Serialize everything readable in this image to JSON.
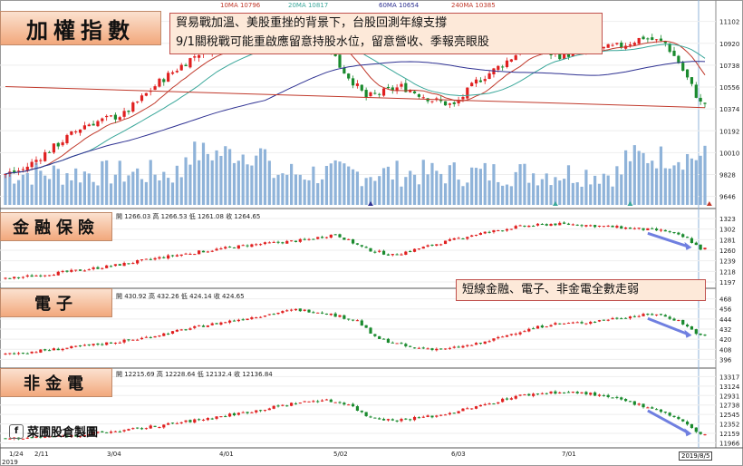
{
  "header": {
    "ma_legend": [
      {
        "label": "10MA 10796",
        "color": "#c0392b"
      },
      {
        "label": "20MA 10817",
        "color": "#3aa79a"
      },
      {
        "label": "60MA 10654",
        "color": "#2e3192"
      },
      {
        "label": "240MA 10385",
        "color": "#c0392b"
      }
    ]
  },
  "annotation_main": {
    "line1": "貿易戰加溫、美股重挫的背景下，台股回測年線支撐",
    "line2": "9/1關稅戰可能重啟應留意持股水位，留意營收、季報亮眼股"
  },
  "annotation_sub": "短線金融、電子、非金電全數走弱",
  "watermark": "菜圃股倉製圖",
  "watermark_icon": "f",
  "date_marker": "2019/8/5",
  "year_label": "2019",
  "colors": {
    "up": "#e02020",
    "down": "#1a8a2e",
    "volume": "#8fb3d9",
    "arrow": "#6f7fe0"
  },
  "chart_data": [
    {
      "type": "candlestick",
      "title": "加權指數",
      "x": [
        "1/24",
        "2/11",
        "3/04",
        "4/01",
        "5/02",
        "6/03",
        "7/01",
        "8/05"
      ],
      "yticks": [
        9646,
        9828,
        10010,
        10192,
        10374,
        10556,
        10738,
        10920,
        11102
      ],
      "ylim": [
        9560,
        11190
      ],
      "ma": {
        "10MA": 10796,
        "20MA": 10817,
        "60MA": 10654,
        "240MA": 10385
      },
      "anchors": [
        [
          0,
          9830
        ],
        [
          4,
          9870
        ],
        [
          10,
          10030
        ],
        [
          18,
          10240
        ],
        [
          27,
          10330
        ],
        [
          35,
          10600
        ],
        [
          45,
          10870
        ],
        [
          57,
          10920
        ],
        [
          66,
          10930
        ],
        [
          69,
          11010
        ],
        [
          73,
          10950
        ],
        [
          76,
          10730
        ],
        [
          82,
          10470
        ],
        [
          90,
          10560
        ],
        [
          97,
          10450
        ],
        [
          102,
          10400
        ],
        [
          107,
          10600
        ],
        [
          112,
          10720
        ],
        [
          118,
          10880
        ],
        [
          126,
          10820
        ],
        [
          132,
          10850
        ],
        [
          140,
          10900
        ],
        [
          145,
          10970
        ],
        [
          150,
          10920
        ],
        [
          153,
          10760
        ],
        [
          156,
          10560
        ],
        [
          158,
          10420
        ]
      ],
      "volume_range": [
        0,
        1
      ]
    },
    {
      "type": "candlestick",
      "title": "金融保險",
      "ohlc": "開 1266.03 高 1266.53 低 1261.08 收 1264.65",
      "yticks": [
        1197,
        1218,
        1239,
        1260,
        1281,
        1302,
        1323
      ],
      "ylim": [
        1188,
        1332
      ],
      "anchors": [
        [
          0,
          1203
        ],
        [
          15,
          1218
        ],
        [
          25,
          1230
        ],
        [
          35,
          1245
        ],
        [
          45,
          1258
        ],
        [
          55,
          1270
        ],
        [
          68,
          1280
        ],
        [
          75,
          1292
        ],
        [
          82,
          1262
        ],
        [
          88,
          1250
        ],
        [
          96,
          1268
        ],
        [
          106,
          1290
        ],
        [
          116,
          1306
        ],
        [
          124,
          1312
        ],
        [
          130,
          1311
        ],
        [
          140,
          1305
        ],
        [
          150,
          1298
        ],
        [
          155,
          1283
        ],
        [
          158,
          1263
        ]
      ]
    },
    {
      "type": "candlestick",
      "title": "電子",
      "ohlc": "開 430.92 高 432.26 低 424.14 收 424.65",
      "yticks": [
        396,
        408,
        420,
        432,
        444,
        456,
        468
      ],
      "ylim": [
        390,
        474
      ],
      "anchors": [
        [
          0,
          402
        ],
        [
          15,
          410
        ],
        [
          30,
          420
        ],
        [
          45,
          436
        ],
        [
          58,
          448
        ],
        [
          66,
          455
        ],
        [
          72,
          452
        ],
        [
          80,
          442
        ],
        [
          84,
          422
        ],
        [
          92,
          410
        ],
        [
          100,
          408
        ],
        [
          108,
          415
        ],
        [
          116,
          428
        ],
        [
          124,
          438
        ],
        [
          132,
          440
        ],
        [
          140,
          446
        ],
        [
          148,
          450
        ],
        [
          153,
          442
        ],
        [
          158,
          424
        ]
      ]
    },
    {
      "type": "candlestick",
      "title": "非金電",
      "ohlc": "開 12215.69 高 12228.64 低 12132.4 收 12136.84",
      "yticks": [
        11966,
        12159,
        12352,
        12545,
        12738,
        12931,
        13124,
        13317
      ],
      "ylim": [
        11900,
        13380
      ],
      "anchors": [
        [
          0,
          12050
        ],
        [
          15,
          12110
        ],
        [
          30,
          12250
        ],
        [
          45,
          12450
        ],
        [
          58,
          12640
        ],
        [
          66,
          12780
        ],
        [
          72,
          12840
        ],
        [
          78,
          12760
        ],
        [
          82,
          12520
        ],
        [
          88,
          12420
        ],
        [
          98,
          12520
        ],
        [
          108,
          12720
        ],
        [
          116,
          12920
        ],
        [
          124,
          13000
        ],
        [
          132,
          12980
        ],
        [
          140,
          12840
        ],
        [
          148,
          12650
        ],
        [
          153,
          12450
        ],
        [
          158,
          12140
        ]
      ]
    }
  ]
}
